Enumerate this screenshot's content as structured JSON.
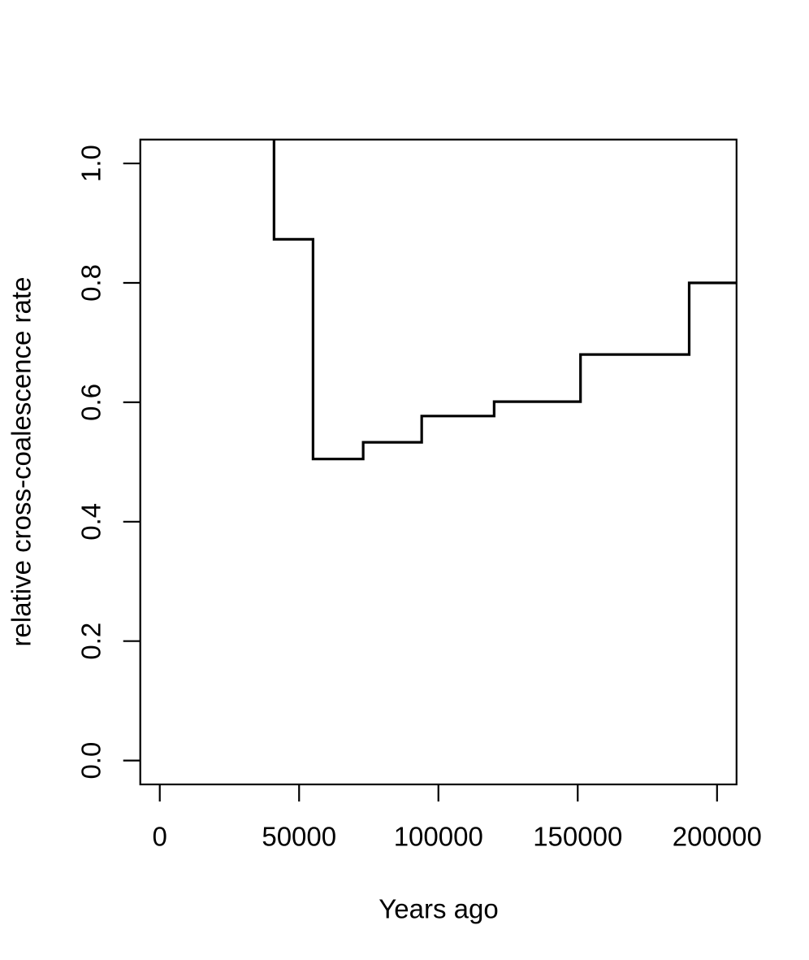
{
  "chart_data": {
    "type": "line",
    "style": "step",
    "title": "",
    "xlabel": "Years ago",
    "ylabel": "relative cross-coalescence rate",
    "x_tick_values": [
      0,
      50000,
      100000,
      150000,
      200000
    ],
    "x_tick_labels": [
      "0",
      "50000",
      "100000",
      "150000",
      "200000"
    ],
    "y_tick_values": [
      0.0,
      0.2,
      0.4,
      0.6,
      0.8,
      1.0
    ],
    "y_tick_labels": [
      "0.0",
      "0.2",
      "0.4",
      "0.6",
      "0.8",
      "1.0"
    ],
    "xlim": [
      -7000,
      207000
    ],
    "ylim": [
      -0.04,
      1.04
    ],
    "grid": false,
    "legend_position": "none",
    "line_color": "#000000",
    "background_color": "#ffffff",
    "series": [
      {
        "name": "relative cross-coalescence rate",
        "step_segments": [
          {
            "x_start": 0,
            "x_end": 41000,
            "value": null,
            "note": "above upper y limit, clipped at top border"
          },
          {
            "x_start": 41000,
            "x_end": 55000,
            "value": 0.873
          },
          {
            "x_start": 55000,
            "x_end": 73000,
            "value": 0.505
          },
          {
            "x_start": 73000,
            "x_end": 94000,
            "value": 0.533
          },
          {
            "x_start": 94000,
            "x_end": 120000,
            "value": 0.577
          },
          {
            "x_start": 120000,
            "x_end": 151000,
            "value": 0.601
          },
          {
            "x_start": 151000,
            "x_end": 190000,
            "value": 0.68
          },
          {
            "x_start": 190000,
            "x_end": 207000,
            "value": 0.8
          }
        ]
      }
    ]
  }
}
